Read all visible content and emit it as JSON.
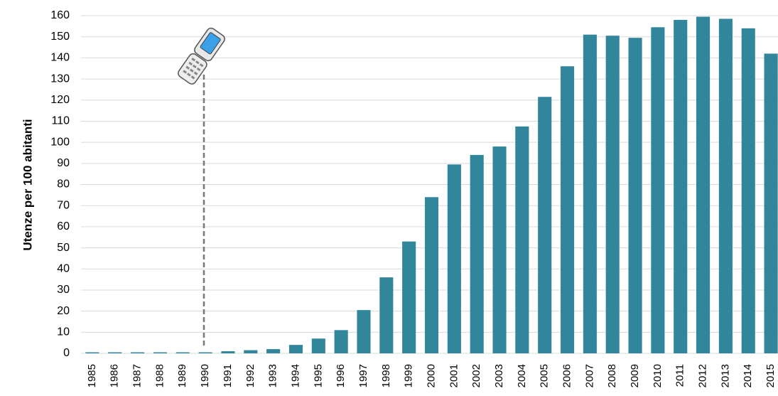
{
  "chart_data": {
    "type": "bar",
    "y_label": "Utenze per 100 abitanti",
    "categories": [
      "1985",
      "1986",
      "1987",
      "1988",
      "1989",
      "1990",
      "1991",
      "1992",
      "1993",
      "1994",
      "1995",
      "1996",
      "1997",
      "1998",
      "1999",
      "2000",
      "2001",
      "2002",
      "2003",
      "2004",
      "2005",
      "2006",
      "2007",
      "2008",
      "2009",
      "2010",
      "2011",
      "2012",
      "2013",
      "2014",
      "2015"
    ],
    "values": [
      0.5,
      0.5,
      0.5,
      0.5,
      0.5,
      0.5,
      1,
      1.5,
      2,
      4,
      7,
      11,
      20.5,
      36,
      53,
      74,
      89.5,
      94,
      98,
      107.5,
      121.5,
      136,
      151,
      150.5,
      149.5,
      154.5,
      158,
      159.5,
      158.5,
      154,
      142
    ],
    "color": "#31869b",
    "ylim": [
      0,
      160
    ],
    "yticks": [
      0,
      10,
      20,
      30,
      40,
      50,
      60,
      70,
      80,
      90,
      100,
      110,
      120,
      130,
      140,
      150,
      160
    ],
    "grid": true
  }
}
